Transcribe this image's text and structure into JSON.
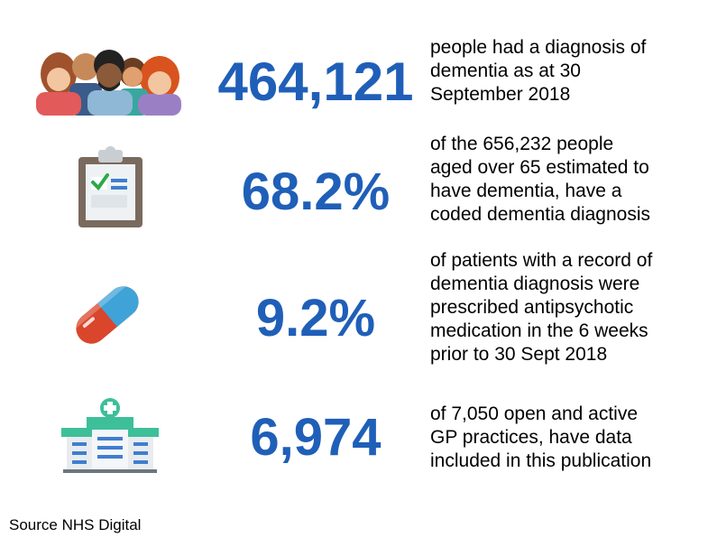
{
  "colors": {
    "stat_blue": "#1f5fb8",
    "text": "#000000",
    "background": "#ffffff"
  },
  "rows": [
    {
      "icon": "people-group-icon",
      "value": "464,121",
      "description": [
        "people had a diagnosis of",
        "dementia as at 30",
        "September 2018"
      ]
    },
    {
      "icon": "clipboard-checklist-icon",
      "value": "68.2%",
      "description": [
        "of the 656,232 people",
        "aged over 65 estimated to",
        "have dementia, have a",
        "coded dementia diagnosis"
      ]
    },
    {
      "icon": "pill-capsule-icon",
      "value": "9.2%",
      "description": [
        "of patients with a record of",
        "dementia diagnosis were",
        "prescribed antipsychotic",
        "medication in the 6 weeks",
        "prior to 30 Sept 2018"
      ]
    },
    {
      "icon": "hospital-building-icon",
      "value": "6,974",
      "description": [
        "of 7,050 open and active",
        "GP practices, have data",
        "included in this publication"
      ]
    }
  ],
  "source": "Source NHS Digital"
}
